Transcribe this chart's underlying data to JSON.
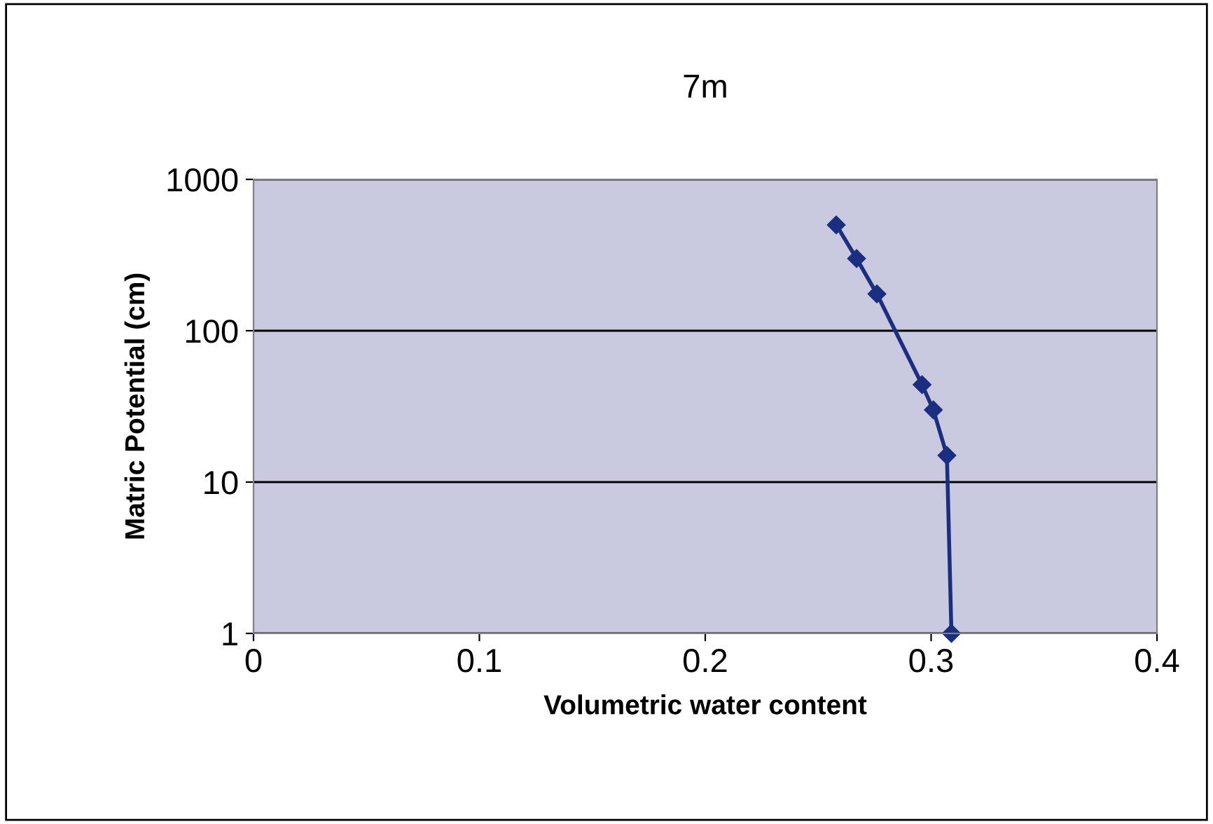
{
  "chart_data": {
    "type": "line",
    "title": "7m",
    "xlabel": "Volumetric water content",
    "ylabel": "Matric Potential (cm)",
    "x": [
      0.258,
      0.267,
      0.276,
      0.296,
      0.301,
      0.307,
      0.309
    ],
    "series": [
      {
        "color": "#1a2f80",
        "values": [
          500,
          300,
          175,
          44,
          30,
          15,
          1
        ]
      }
    ],
    "xlim": [
      0,
      0.4
    ],
    "xticks": [
      0,
      0.1,
      0.2,
      0.3,
      0.4
    ],
    "ylim": [
      1,
      1000
    ],
    "yticks": [
      1,
      10,
      100,
      1000
    ],
    "log": "y",
    "grid": "y",
    "marker": "diamond",
    "line_style": "solid"
  }
}
